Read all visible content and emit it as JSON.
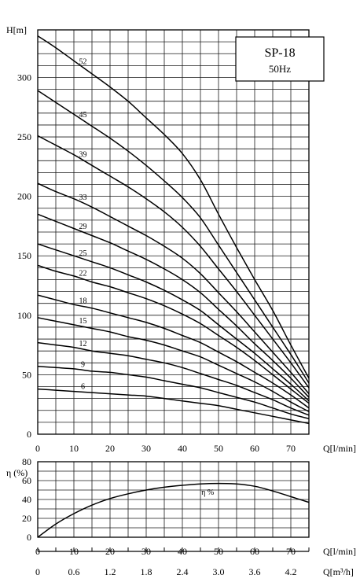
{
  "chart_data": [
    {
      "type": "line",
      "title": "SP-18",
      "subtitle": "50Hz",
      "ylabel": "H[m]",
      "xlabel": "Q[l/min]",
      "xlim": [
        0,
        75
      ],
      "ylim": [
        0,
        340
      ],
      "xticks": [
        0,
        10,
        20,
        30,
        40,
        50,
        60,
        70
      ],
      "yticks": [
        0,
        50,
        100,
        150,
        200,
        250,
        300
      ],
      "grid": true,
      "series": [
        {
          "name": "52",
          "x": [
            0,
            5,
            10,
            15,
            20,
            25,
            30,
            35,
            40,
            45,
            50,
            55,
            60,
            65,
            70,
            75
          ],
          "y": [
            335,
            325,
            314,
            303,
            292,
            280,
            266,
            252,
            236,
            214,
            185,
            157,
            130,
            104,
            75,
            47
          ]
        },
        {
          "name": "45",
          "x": [
            0,
            5,
            10,
            15,
            20,
            25,
            30,
            35,
            40,
            45,
            50,
            55,
            60,
            65,
            70,
            75
          ],
          "y": [
            289,
            279,
            269,
            259,
            249,
            238,
            226,
            213,
            199,
            182,
            159,
            136,
            113,
            90,
            67,
            43
          ]
        },
        {
          "name": "39",
          "x": [
            0,
            5,
            10,
            15,
            20,
            25,
            30,
            35,
            40,
            45,
            50,
            55,
            60,
            65,
            70,
            75
          ],
          "y": [
            251,
            243,
            235,
            226,
            217,
            208,
            198,
            187,
            174,
            158,
            139,
            120,
            100,
            80,
            60,
            39
          ]
        },
        {
          "name": "33",
          "x": [
            0,
            5,
            10,
            15,
            20,
            25,
            30,
            35,
            40,
            45,
            50,
            55,
            60,
            65,
            70,
            75
          ],
          "y": [
            211,
            204,
            198,
            191,
            183,
            175,
            167,
            158,
            148,
            135,
            119,
            103,
            86,
            69,
            52,
            34
          ]
        },
        {
          "name": "29",
          "x": [
            0,
            5,
            10,
            15,
            20,
            25,
            30,
            35,
            40,
            45,
            50,
            55,
            60,
            65,
            70,
            75
          ],
          "y": [
            185,
            179,
            173,
            167,
            161,
            154,
            147,
            139,
            130,
            119,
            105,
            91,
            76,
            62,
            47,
            31
          ]
        },
        {
          "name": "25",
          "x": [
            0,
            5,
            10,
            15,
            20,
            25,
            30,
            35,
            40,
            45,
            50,
            55,
            60,
            65,
            70,
            75
          ],
          "y": [
            160,
            155,
            150,
            145,
            140,
            134,
            128,
            121,
            113,
            104,
            92,
            80,
            68,
            55,
            42,
            28
          ]
        },
        {
          "name": "22",
          "x": [
            0,
            5,
            10,
            15,
            20,
            25,
            30,
            35,
            40,
            45,
            50,
            55,
            60,
            65,
            70,
            75
          ],
          "y": [
            142,
            137,
            133,
            128,
            124,
            119,
            114,
            108,
            101,
            93,
            83,
            73,
            62,
            50,
            38,
            26
          ]
        },
        {
          "name": "18",
          "x": [
            0,
            5,
            10,
            15,
            20,
            25,
            30,
            35,
            40,
            45,
            50,
            55,
            60,
            65,
            70,
            75
          ],
          "y": [
            117,
            113,
            109,
            106,
            102,
            98,
            94,
            89,
            83,
            77,
            69,
            61,
            52,
            43,
            33,
            22
          ]
        },
        {
          "name": "15",
          "x": [
            0,
            5,
            10,
            15,
            20,
            25,
            30,
            35,
            40,
            45,
            50,
            55,
            60,
            65,
            70,
            75
          ],
          "y": [
            98,
            95,
            92,
            89,
            86,
            82,
            79,
            75,
            70,
            65,
            58,
            51,
            44,
            36,
            27,
            19
          ]
        },
        {
          "name": "12",
          "x": [
            0,
            5,
            10,
            15,
            20,
            25,
            30,
            35,
            40,
            45,
            50,
            55,
            60,
            65,
            70,
            75
          ],
          "y": [
            77,
            75,
            73,
            70,
            68,
            66,
            63,
            60,
            56,
            51,
            46,
            41,
            35,
            29,
            22,
            16
          ]
        },
        {
          "name": "9",
          "x": [
            0,
            5,
            10,
            15,
            20,
            25,
            30,
            35,
            40,
            45,
            50,
            55,
            60,
            65,
            70,
            75
          ],
          "y": [
            57,
            56,
            55,
            53,
            52,
            50,
            48,
            45,
            42,
            39,
            35,
            31,
            27,
            22,
            17,
            13
          ]
        },
        {
          "name": "6",
          "x": [
            0,
            5,
            10,
            15,
            20,
            25,
            30,
            35,
            40,
            45,
            50,
            55,
            60,
            65,
            70,
            75
          ],
          "y": [
            38,
            37,
            36,
            35,
            34,
            33,
            32,
            30,
            28,
            26,
            24,
            21,
            18,
            15,
            12,
            9
          ]
        }
      ]
    },
    {
      "type": "line",
      "ylabel": "η (%)",
      "xlabel": "Q[l/min]",
      "xlim": [
        0,
        75
      ],
      "ylim": [
        0,
        80
      ],
      "xticks": [
        0,
        10,
        20,
        30,
        40,
        50,
        60,
        70
      ],
      "yticks": [
        0,
        20,
        40,
        60,
        80
      ],
      "grid": true,
      "series": [
        {
          "name": "η %",
          "x": [
            0,
            5,
            10,
            15,
            20,
            25,
            30,
            35,
            40,
            45,
            50,
            55,
            60,
            65,
            70,
            75
          ],
          "y": [
            0,
            14,
            25,
            34,
            41,
            46,
            50,
            53,
            55,
            56.5,
            57,
            56.5,
            54,
            49,
            43,
            37
          ]
        }
      ]
    },
    {
      "type": "axis",
      "xlabel": "Q[m³/h]",
      "xlim": [
        0,
        4.5
      ],
      "xticks": [
        0,
        0.6,
        1.2,
        1.8,
        2.4,
        3.0,
        3.6,
        4.2
      ],
      "xticklabels": [
        "0",
        "0.6",
        "1.2",
        "1.8",
        "2.4",
        "3.0",
        "3.6",
        "4.2"
      ]
    }
  ]
}
